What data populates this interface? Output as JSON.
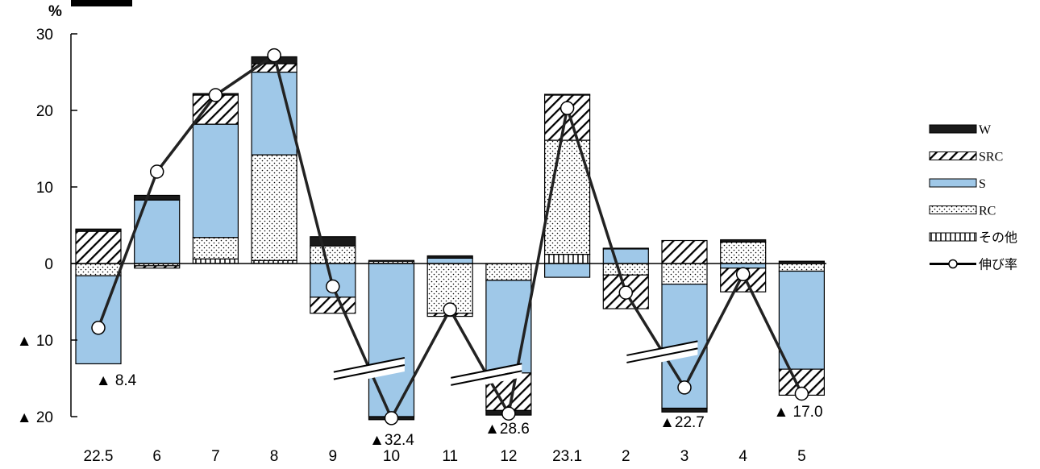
{
  "chart_data": {
    "type": "bar",
    "stacked": true,
    "unit": "%",
    "ylim": [
      -20,
      30
    ],
    "y_ticks": [
      {
        "value": 30,
        "label": "30"
      },
      {
        "value": 20,
        "label": "20"
      },
      {
        "value": 10,
        "label": "10"
      },
      {
        "value": 0,
        "label": "0"
      },
      {
        "value": -10,
        "label": "▲ 10"
      },
      {
        "value": -20,
        "label": "▲ 20"
      }
    ],
    "categories": [
      "22.5",
      "6",
      "7",
      "8",
      "9",
      "10",
      "11",
      "12",
      "23.1",
      "2",
      "3",
      "4",
      "5"
    ],
    "series": [
      {
        "name": "その他",
        "key": "other",
        "color": "#ffffff",
        "pattern": "vlines",
        "values": [
          0,
          0,
          0.6,
          0.4,
          0,
          0,
          0,
          0,
          1.2,
          0,
          0,
          0,
          0
        ]
      },
      {
        "name": "RC",
        "key": "rc",
        "color": "#ffffff",
        "pattern": "dots",
        "values": [
          -1.6,
          -0.3,
          2.8,
          13.8,
          2.3,
          0.3,
          -6.5,
          -2.2,
          14.9,
          -1.5,
          -2.7,
          2.8,
          -1.0
        ]
      },
      {
        "name": "S",
        "key": "s",
        "color": "#9fc8e8",
        "pattern": "solid",
        "values": [
          -11.5,
          8.3,
          14.8,
          10.8,
          -4.4,
          -20.0,
          0.7,
          -12.1,
          -1.8,
          1.9,
          -16.2,
          -0.6,
          -12.8
        ]
      },
      {
        "name": "SRC",
        "key": "src",
        "color": "#ffffff",
        "pattern": "diag",
        "values": [
          4.2,
          -0.3,
          3.8,
          1.1,
          -2.1,
          0.1,
          -0.4,
          -4.9,
          5.9,
          -4.4,
          3.0,
          -3.1,
          -3.4
        ]
      },
      {
        "name": "W",
        "key": "w",
        "color": "#1a1a1a",
        "pattern": "solid",
        "values": [
          0.3,
          0.6,
          0.2,
          0.9,
          1.2,
          -0.4,
          0.3,
          -0.6,
          0.1,
          0.1,
          -0.5,
          0.3,
          0.3
        ]
      }
    ],
    "line_series": {
      "name": "伸び率",
      "values": [
        -8.4,
        12.0,
        22.0,
        27.2,
        -3.0,
        -32.4,
        -6.0,
        -28.6,
        20.3,
        -3.8,
        -22.7,
        -1.4,
        -17.0
      ],
      "plot_values": [
        -8.4,
        12.0,
        22.0,
        27.2,
        -3.0,
        -20.2,
        -6.0,
        -19.6,
        20.3,
        -3.8,
        -16.2,
        -1.4,
        -17.0
      ],
      "axis_breaks_at_categories": [
        "10",
        "12",
        "3"
      ]
    },
    "annotations": [
      {
        "category": "22.5",
        "text": "▲ 8.4"
      },
      {
        "category": "10",
        "text": "▲32.4"
      },
      {
        "category": "12",
        "text": "▲28.6"
      },
      {
        "category": "3",
        "text": "▲22.7"
      },
      {
        "category": "5",
        "text": "▲ 17.0"
      }
    ],
    "legend": {
      "position": "right",
      "items": [
        {
          "label": "W",
          "key": "w"
        },
        {
          "label": "SRC",
          "key": "src"
        },
        {
          "label": "S",
          "key": "s"
        },
        {
          "label": "RC",
          "key": "rc"
        },
        {
          "label": "その他",
          "key": "other"
        },
        {
          "label": "伸び率",
          "key": "line"
        }
      ]
    },
    "grid": false
  }
}
